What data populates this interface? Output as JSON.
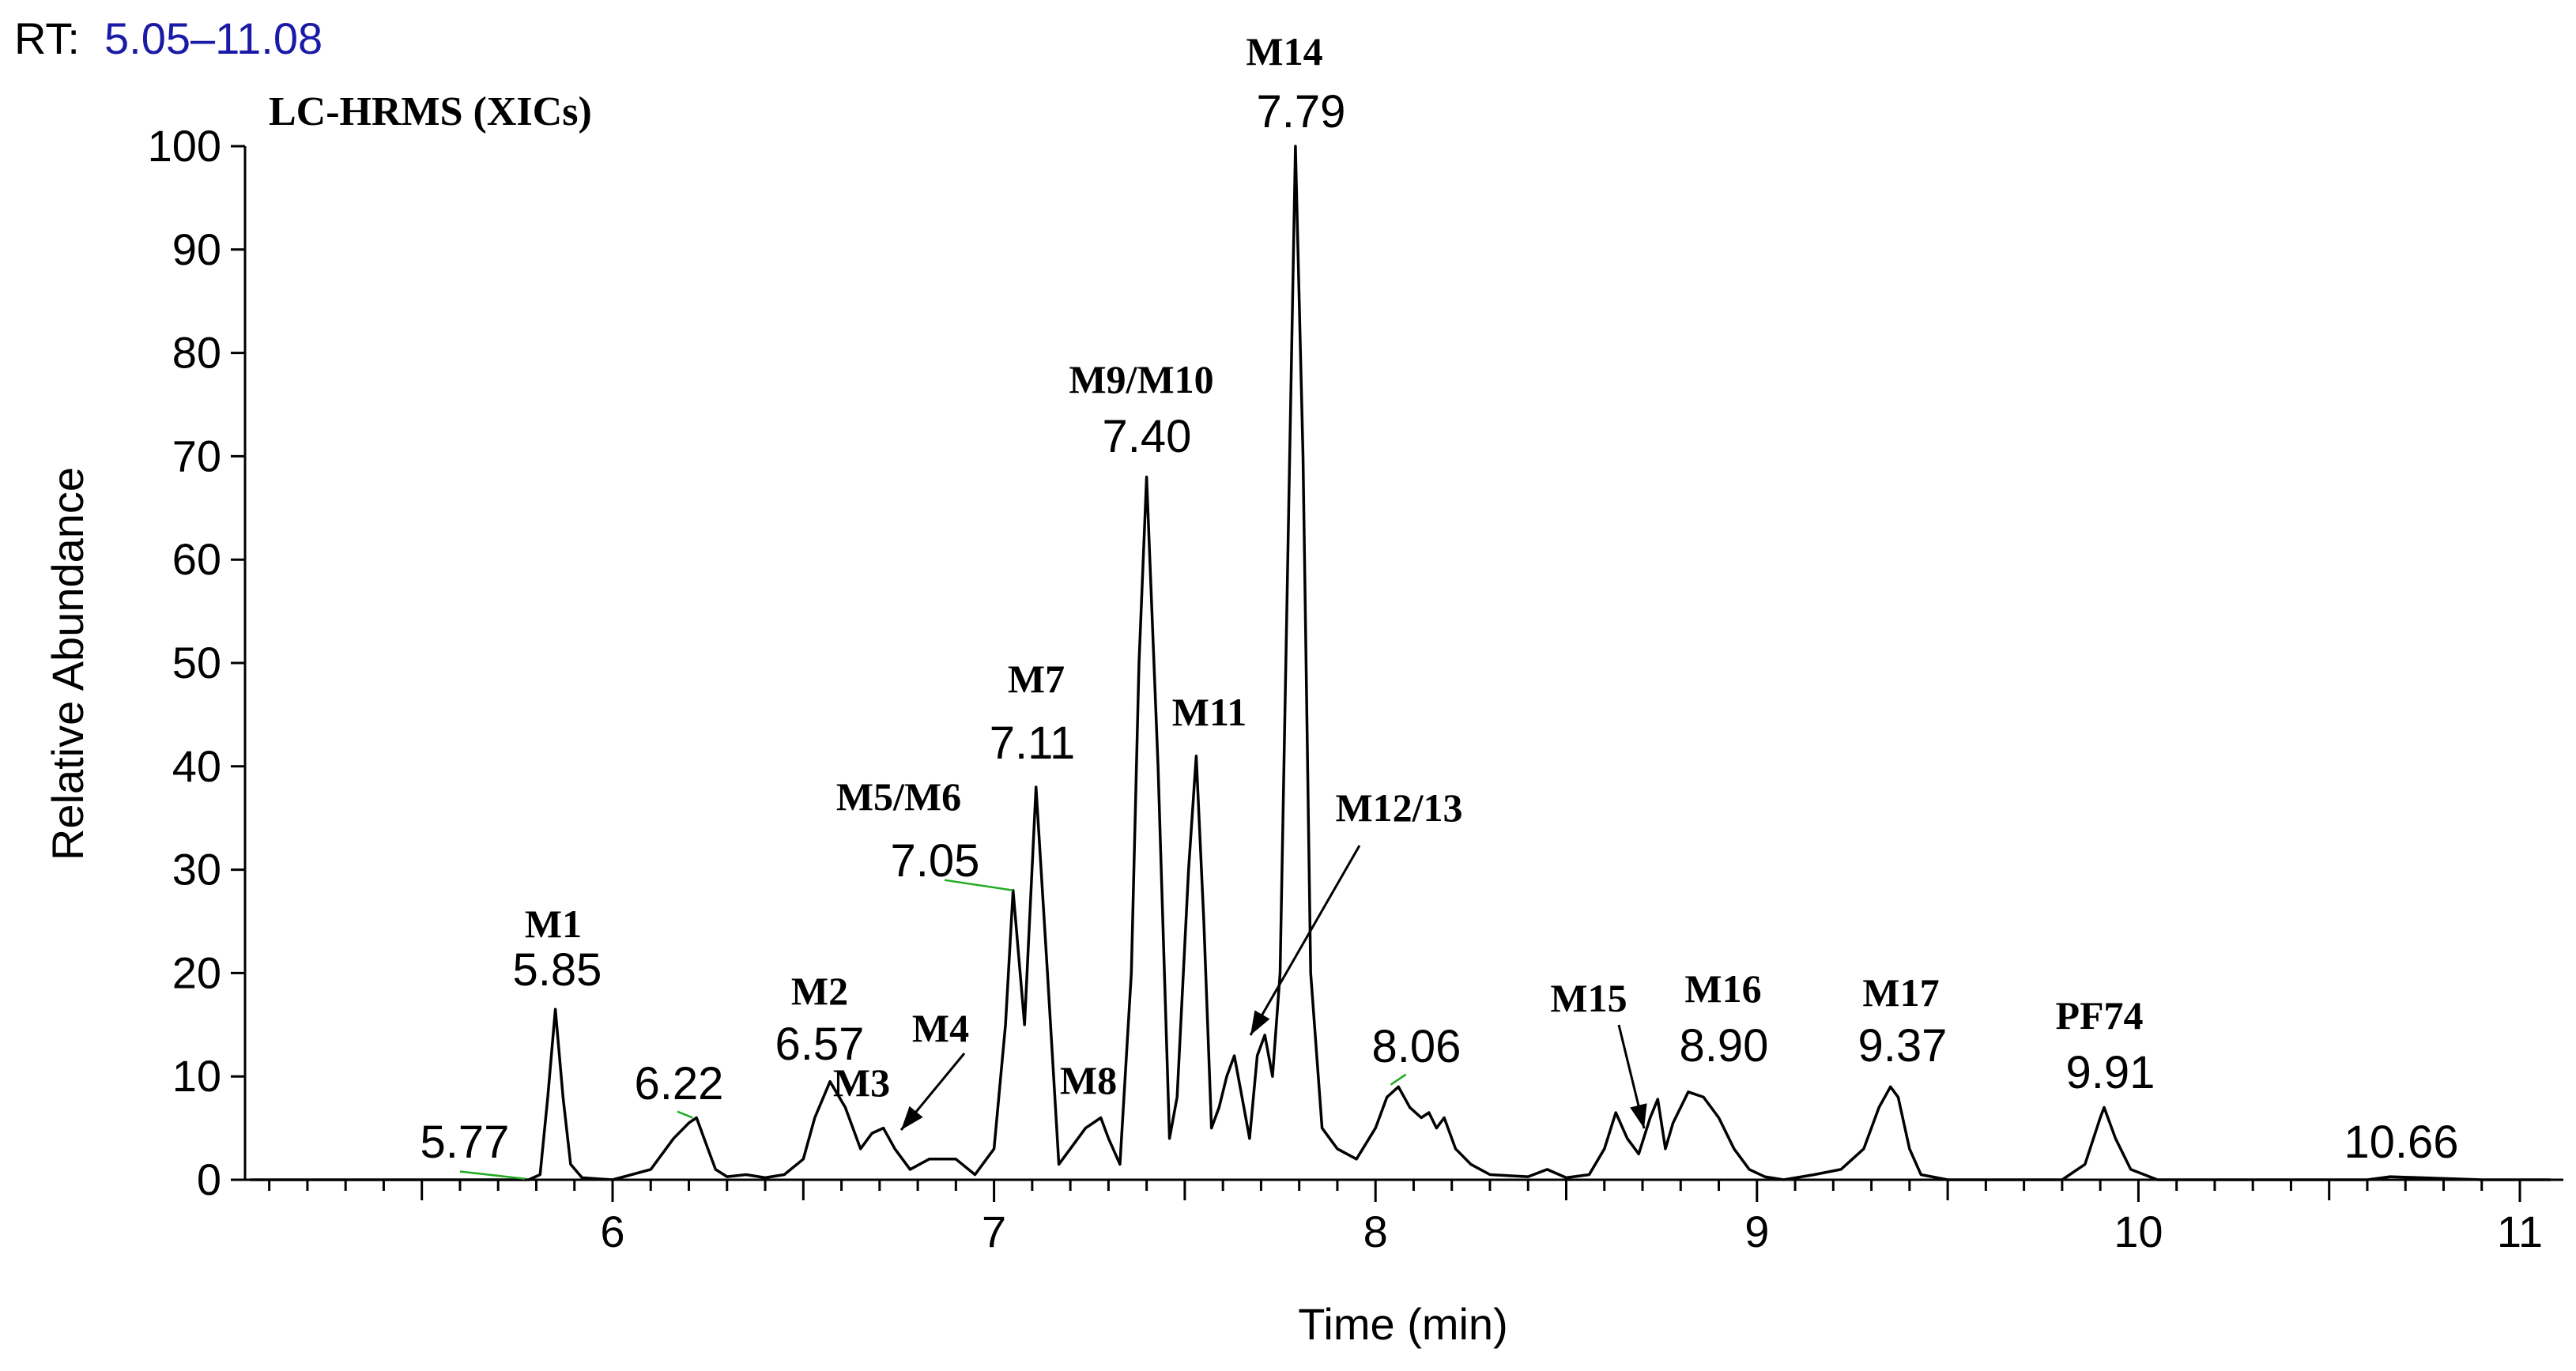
{
  "chart_data": {
    "type": "line",
    "rt_label": "RT:",
    "rt_range_text": "5.05–11.08",
    "title": "LC-HRMS (XICs)",
    "xlabel": "Time (min)",
    "ylabel": "Relative Abundance",
    "xlim": [
      5.05,
      11.08
    ],
    "ylim": [
      0,
      100
    ],
    "x_ticks": [
      6,
      7,
      8,
      9,
      10,
      11
    ],
    "y_ticks": [
      0,
      10,
      20,
      30,
      40,
      50,
      60,
      70,
      80,
      90,
      100
    ],
    "colors": {
      "trace": "#000000",
      "rt_value": "#1a1aa6",
      "marker": "#22aa22"
    },
    "series": [
      {
        "name": "XIC",
        "x": [
          5.05,
          5.6,
          5.78,
          5.81,
          5.83,
          5.85,
          5.87,
          5.89,
          5.92,
          6.0,
          6.1,
          6.16,
          6.2,
          6.22,
          6.25,
          6.27,
          6.3,
          6.35,
          6.4,
          6.45,
          6.5,
          6.53,
          6.57,
          6.61,
          6.65,
          6.68,
          6.71,
          6.74,
          6.78,
          6.83,
          6.9,
          6.95,
          7.0,
          7.03,
          7.05,
          7.08,
          7.11,
          7.14,
          7.17,
          7.2,
          7.24,
          7.28,
          7.3,
          7.33,
          7.36,
          7.38,
          7.4,
          7.43,
          7.46,
          7.48,
          7.51,
          7.53,
          7.55,
          7.57,
          7.59,
          7.61,
          7.63,
          7.65,
          7.67,
          7.69,
          7.71,
          7.73,
          7.75,
          7.77,
          7.79,
          7.81,
          7.83,
          7.86,
          7.9,
          7.95,
          8.0,
          8.03,
          8.06,
          8.09,
          8.12,
          8.14,
          8.16,
          8.18,
          8.21,
          8.25,
          8.3,
          8.4,
          8.45,
          8.5,
          8.56,
          8.6,
          8.63,
          8.66,
          8.69,
          8.72,
          8.74,
          8.76,
          8.78,
          8.82,
          8.86,
          8.9,
          8.94,
          8.98,
          9.02,
          9.07,
          9.15,
          9.22,
          9.28,
          9.32,
          9.35,
          9.37,
          9.4,
          9.43,
          9.5,
          9.6,
          9.8,
          9.86,
          9.9,
          9.91,
          9.94,
          9.98,
          10.05,
          10.3,
          10.6,
          10.66,
          10.9,
          11.08
        ],
        "y": [
          0,
          0,
          0,
          0.5,
          8,
          16.5,
          8,
          1.5,
          0.2,
          0,
          1,
          4,
          5.5,
          6,
          3,
          1,
          0.3,
          0.5,
          0.2,
          0.5,
          2,
          6,
          9.5,
          7,
          3,
          4.5,
          5,
          3,
          1,
          2,
          2,
          0.5,
          3,
          15,
          28,
          15,
          38,
          20,
          1.5,
          3,
          5,
          6,
          4,
          1.5,
          20,
          50,
          68,
          40,
          4,
          8,
          30,
          41,
          25,
          5,
          7,
          10,
          12,
          8,
          4,
          12,
          14,
          10,
          20,
          60,
          100,
          70,
          20,
          5,
          3,
          2,
          5,
          8,
          9,
          7,
          6,
          6.5,
          5,
          6,
          3,
          1.5,
          0.5,
          0.3,
          1,
          0.2,
          0.5,
          3,
          6.5,
          4,
          2.5,
          6,
          7.8,
          3,
          5.5,
          8.5,
          8,
          6,
          3,
          1,
          0.3,
          0,
          0.5,
          1,
          3,
          7,
          9,
          8,
          3,
          0.5,
          0,
          0,
          0,
          1.5,
          6,
          7,
          4,
          1,
          0,
          0,
          0,
          0.3,
          0,
          0
        ]
      }
    ],
    "rt_labels": [
      {
        "text": "5.77",
        "x": 5.77,
        "y": 0
      },
      {
        "text": "5.85",
        "x": 5.85,
        "y": 16.5
      },
      {
        "text": "6.22",
        "x": 6.22,
        "y": 6
      },
      {
        "text": "6.57",
        "x": 6.57,
        "y": 9.5
      },
      {
        "text": "7.05",
        "x": 7.05,
        "y": 28
      },
      {
        "text": "7.11",
        "x": 7.11,
        "y": 38
      },
      {
        "text": "7.40",
        "x": 7.4,
        "y": 68
      },
      {
        "text": "7.79",
        "x": 7.79,
        "y": 100
      },
      {
        "text": "8.06",
        "x": 8.06,
        "y": 9
      },
      {
        "text": "8.90",
        "x": 8.9,
        "y": 8.5
      },
      {
        "text": "9.37",
        "x": 9.37,
        "y": 9
      },
      {
        "text": "9.91",
        "x": 9.91,
        "y": 7
      },
      {
        "text": "10.66",
        "x": 10.66,
        "y": 0
      }
    ],
    "annotations": [
      {
        "text": "M1",
        "x": 5.85,
        "y": 16.5
      },
      {
        "text": "M2",
        "x": 6.57,
        "y": 9.5
      },
      {
        "text": "M3",
        "x": 6.68,
        "y": 4.5
      },
      {
        "text": "M4",
        "x": 6.71,
        "y": 5,
        "arrow": true
      },
      {
        "text": "M5/M6",
        "x": 7.05,
        "y": 28
      },
      {
        "text": "M7",
        "x": 7.11,
        "y": 38
      },
      {
        "text": "M8",
        "x": 7.28,
        "y": 6
      },
      {
        "text": "M9/M10",
        "x": 7.4,
        "y": 68
      },
      {
        "text": "M11",
        "x": 7.55,
        "y": 41
      },
      {
        "text": "M12/13",
        "x": 7.67,
        "y": 12,
        "arrow": true
      },
      {
        "text": "M14",
        "x": 7.79,
        "y": 100
      },
      {
        "text": "M15",
        "x": 8.7,
        "y": 4.5,
        "arrow": true
      },
      {
        "text": "M16",
        "x": 8.9,
        "y": 8.5
      },
      {
        "text": "M17",
        "x": 9.37,
        "y": 9
      },
      {
        "text": "PF74",
        "x": 9.91,
        "y": 7
      }
    ]
  }
}
